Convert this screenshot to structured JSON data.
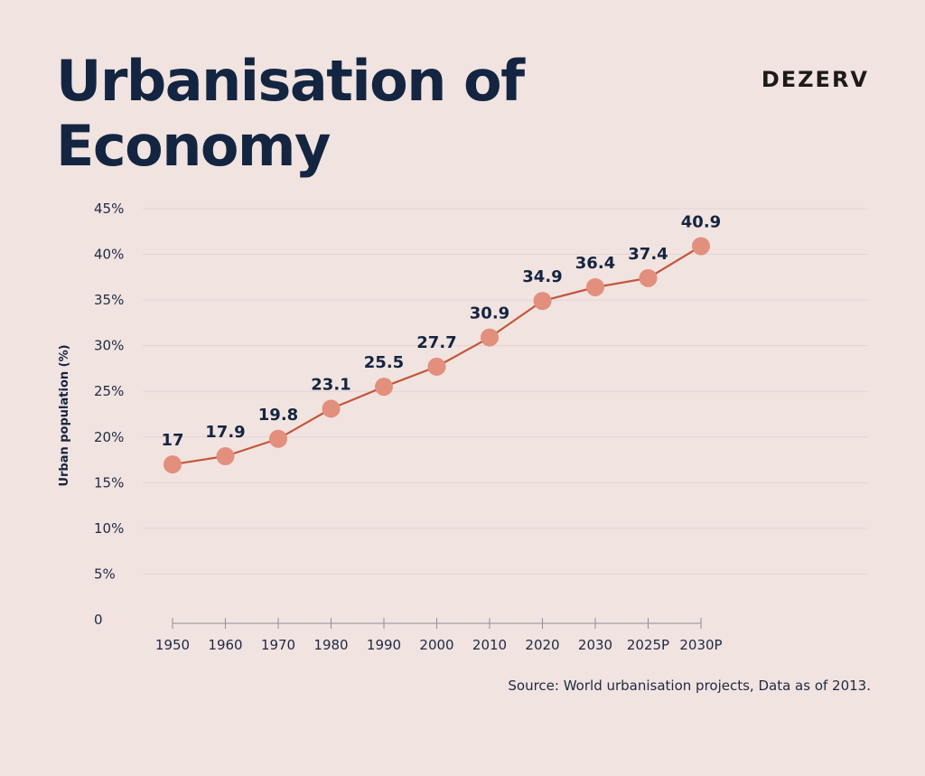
{
  "header": {
    "title_line1": "Urbanisation of",
    "title_line2": "Economy",
    "brand": "DEZERV"
  },
  "footer": {
    "source": "Source: World urbanisation projects, Data as of 2013."
  },
  "colors": {
    "line": "#c2573a",
    "marker": "#e28f7d",
    "grid": "#e3d5d2"
  },
  "chart_data": {
    "type": "line",
    "title": "Urbanisation of Economy",
    "xlabel": "",
    "ylabel": "Urban population (%)",
    "ylim": [
      0,
      45
    ],
    "yticks": [
      {
        "value": 0,
        "label": "0"
      },
      {
        "value": 5,
        "label": "5%"
      },
      {
        "value": 10,
        "label": "10%"
      },
      {
        "value": 15,
        "label": "15%"
      },
      {
        "value": 20,
        "label": "20%"
      },
      {
        "value": 25,
        "label": "25%"
      },
      {
        "value": 30,
        "label": "30%"
      },
      {
        "value": 35,
        "label": "35%"
      },
      {
        "value": 40,
        "label": "40%"
      },
      {
        "value": 45,
        "label": "45%"
      }
    ],
    "categories": [
      "1950",
      "1960",
      "1970",
      "1980",
      "1990",
      "2000",
      "2010",
      "2020",
      "2030",
      "2025P",
      "2030P"
    ],
    "values": [
      17,
      17.9,
      19.8,
      23.1,
      25.5,
      27.7,
      30.9,
      34.9,
      36.4,
      37.4,
      40.9
    ],
    "data_labels": [
      "17",
      "17.9",
      "19.8",
      "23.1",
      "25.5",
      "27.7",
      "30.9",
      "34.9",
      "36.4",
      "37.4",
      "40.9"
    ],
    "grid": true,
    "legend": "none"
  }
}
